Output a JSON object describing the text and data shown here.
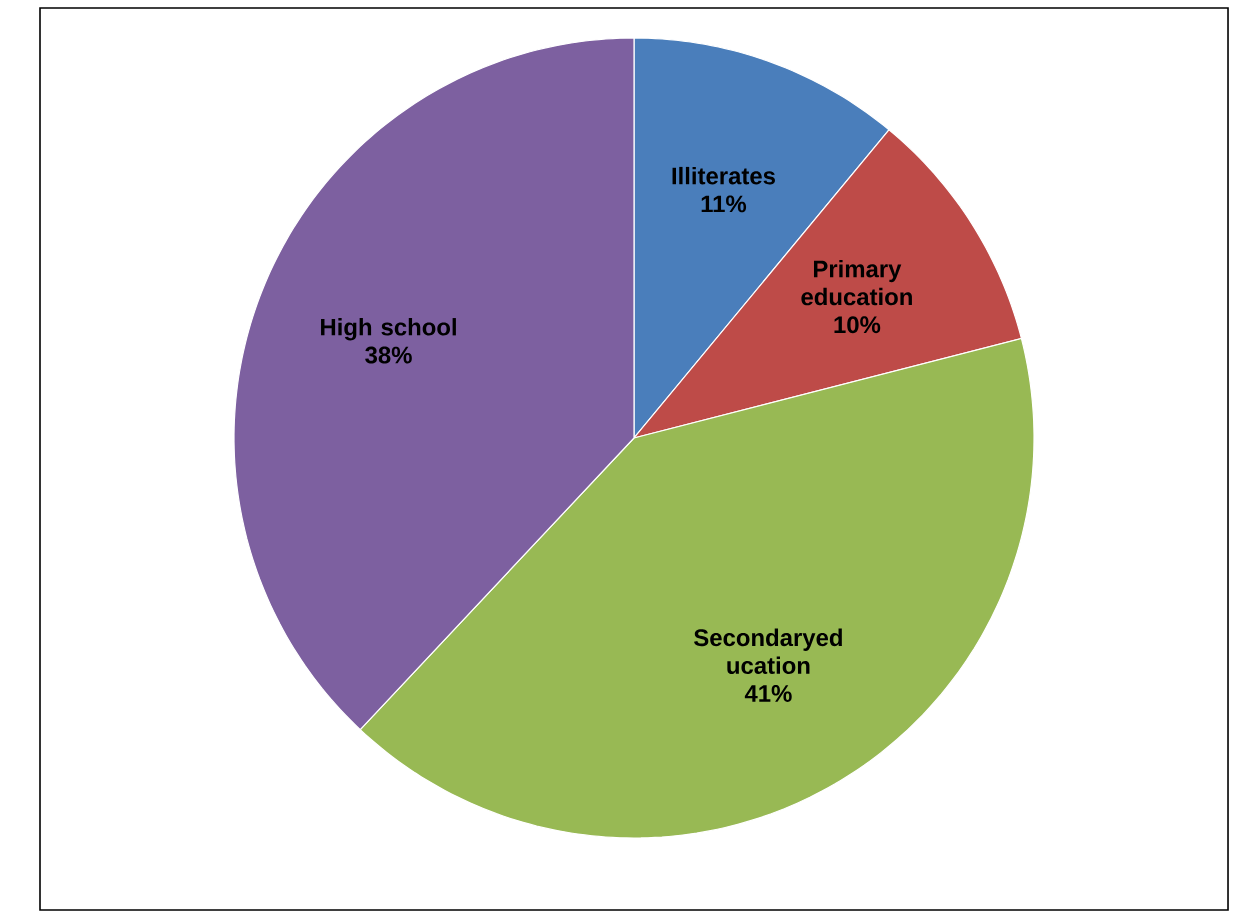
{
  "chart_data": {
    "type": "pie",
    "categories": [
      "Illiterates",
      "Primary education",
      "Secondaryed ucation",
      "High school"
    ],
    "values": [
      11,
      10,
      41,
      38
    ],
    "value_labels": [
      "11%",
      "10%",
      "41%",
      "38%"
    ],
    "colors": [
      "#4a7ebb",
      "#be4b48",
      "#98b954",
      "#7d60a0"
    ]
  }
}
